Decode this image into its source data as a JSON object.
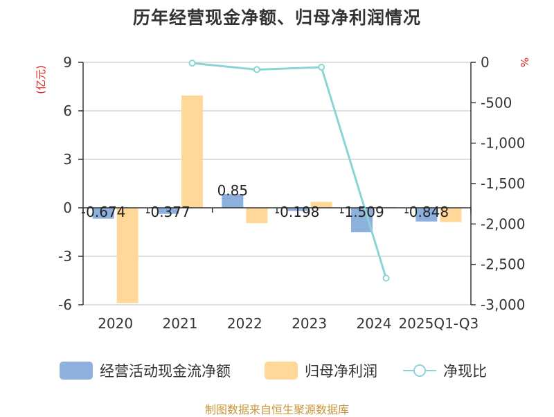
{
  "title": "历年经营现金净额、归母净利润情况",
  "footer": "制图数据来自恒生聚源数据库",
  "colors": {
    "cash_flow": "#8eb0dd",
    "net_profit": "#ffd899",
    "ratio_line": "#8ad4d6",
    "axis_left_unit": "#e02020",
    "axis_right_unit": "#e02020",
    "grid": "#cccccc",
    "axis": "#333333",
    "text": "#333333"
  },
  "legend": [
    {
      "name": "经营活动现金流净额",
      "icon": "bar-swatch-icon"
    },
    {
      "name": "归母净利润",
      "icon": "bar-swatch-icon"
    },
    {
      "name": "净现比",
      "icon": "line-circle-icon"
    }
  ],
  "chart_data": {
    "type": "bar",
    "title": "历年经营现金净额、归母净利润情况",
    "categories": [
      "2020",
      "2021",
      "2022",
      "2023",
      "2024",
      "2025Q1-Q3"
    ],
    "ylabel": "(亿元)",
    "ylabel_right": "%",
    "ylim": [
      -6,
      9
    ],
    "yticks": [
      9,
      6,
      3,
      0,
      -3,
      -6
    ],
    "ylim_right": [
      -3000,
      0
    ],
    "yticks_right": [
      0,
      -500,
      -1000,
      -1500,
      -2000,
      -2500,
      -3000
    ],
    "yticks_right_labels": [
      "0",
      "-500",
      "-1,000",
      "-1,500",
      "-2,000",
      "-2,500",
      "-3,000"
    ],
    "grid": true,
    "legend_position": "bottom",
    "series": [
      {
        "name": "经营活动现金流净额",
        "type": "bar",
        "axis": "left",
        "values": [
          -0.674,
          -0.377,
          0.85,
          -0.198,
          -1.509,
          -0.848
        ],
        "labels": [
          "-0.674",
          "-0.377",
          "0.85",
          "-0.198",
          "-1.509",
          "-0.848"
        ]
      },
      {
        "name": "归母净利润",
        "type": "bar",
        "axis": "left",
        "values": [
          -5.9,
          6.95,
          -0.95,
          0.37,
          0.05,
          -0.88
        ]
      },
      {
        "name": "净现比",
        "type": "line",
        "axis": "right",
        "values": [
          null,
          -10,
          -90,
          -60,
          -2670,
          null
        ]
      }
    ]
  }
}
